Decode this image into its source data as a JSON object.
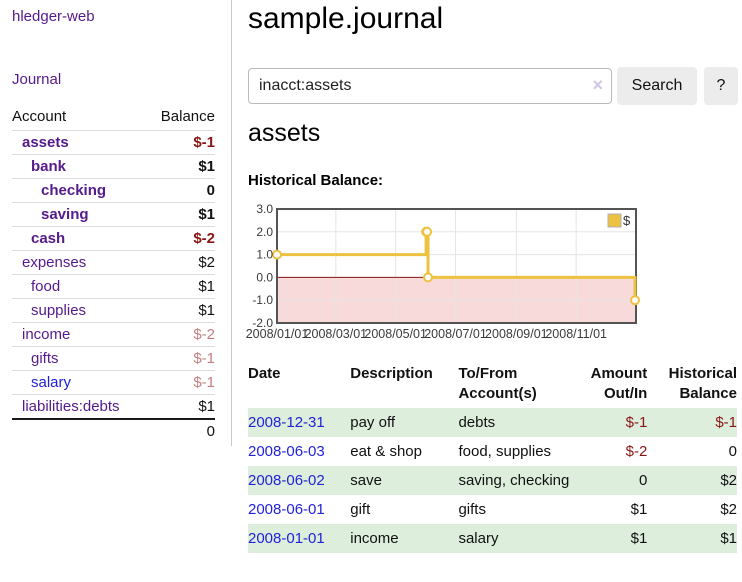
{
  "brand": "hledger-web",
  "sidebar": {
    "journal_link": "Journal",
    "accounts": {
      "col_account": "Account",
      "col_balance": "Balance",
      "rows": [
        {
          "name": "assets",
          "balance": "$-1"
        },
        {
          "name": "bank",
          "balance": "$1"
        },
        {
          "name": "checking",
          "balance": "0"
        },
        {
          "name": "saving",
          "balance": "$1"
        },
        {
          "name": "cash",
          "balance": "$-2"
        },
        {
          "name": "expenses",
          "balance": "$2"
        },
        {
          "name": "food",
          "balance": "$1"
        },
        {
          "name": "supplies",
          "balance": "$1"
        },
        {
          "name": "income",
          "balance": "$-2"
        },
        {
          "name": "gifts",
          "balance": "$-1"
        },
        {
          "name": "salary",
          "balance": "$-1"
        },
        {
          "name": "liabilities:debts",
          "balance": "$1"
        }
      ],
      "total": "0"
    }
  },
  "main": {
    "title": "sample.journal",
    "search": {
      "value": "inacct:assets",
      "clear": "×",
      "search_button": "Search",
      "help_button": "?"
    },
    "heading": "assets",
    "chart_label": "Historical Balance:"
  },
  "chart_data": {
    "type": "line",
    "title": "Historical Balance",
    "step": true,
    "series": [
      {
        "name": "$",
        "points": [
          [
            "2008-01-01",
            1
          ],
          [
            "2008-06-01",
            2
          ],
          [
            "2008-06-02",
            2
          ],
          [
            "2008-06-03",
            0
          ],
          [
            "2008-12-31",
            -1
          ]
        ]
      }
    ],
    "x_range": [
      "2008-01-01",
      "2009-01-01"
    ],
    "ylim": [
      -2,
      3
    ],
    "y_ticks": [
      3.0,
      2.0,
      1.0,
      0.0,
      -1.0,
      -2.0
    ],
    "x_tick_labels": [
      "2008/01/01",
      "2008/03/01",
      "2008/05/01",
      "2008/07/01",
      "2008/09/01",
      "2008/11/01"
    ],
    "legend_position": "top-right",
    "grid": true,
    "colors": {
      "line": "#edc240",
      "negative_fill": "#f9dada",
      "zero_line": "#8b1414",
      "border": "#545454"
    }
  },
  "register": {
    "headers": {
      "date": "Date",
      "sort_indicator": "∧",
      "description": "Description",
      "accounts": "To/From Account(s)",
      "amount": "Amount Out/In",
      "balance": "Historical Balance"
    },
    "rows": [
      {
        "date": "2008-12-31",
        "description": "pay off",
        "accounts": "debts",
        "amount": "$-1",
        "balance": "$-1"
      },
      {
        "date": "2008-06-03",
        "description": "eat & shop",
        "accounts": "food, supplies",
        "amount": "$-2",
        "balance": "0"
      },
      {
        "date": "2008-06-02",
        "description": "save",
        "accounts": "saving, checking",
        "amount": "0",
        "balance": "$2"
      },
      {
        "date": "2008-06-01",
        "description": "gift",
        "accounts": "gifts",
        "amount": "$1",
        "balance": "$2"
      },
      {
        "date": "2008-01-01",
        "description": "income",
        "accounts": "salary",
        "amount": "$1",
        "balance": "$1"
      }
    ]
  }
}
